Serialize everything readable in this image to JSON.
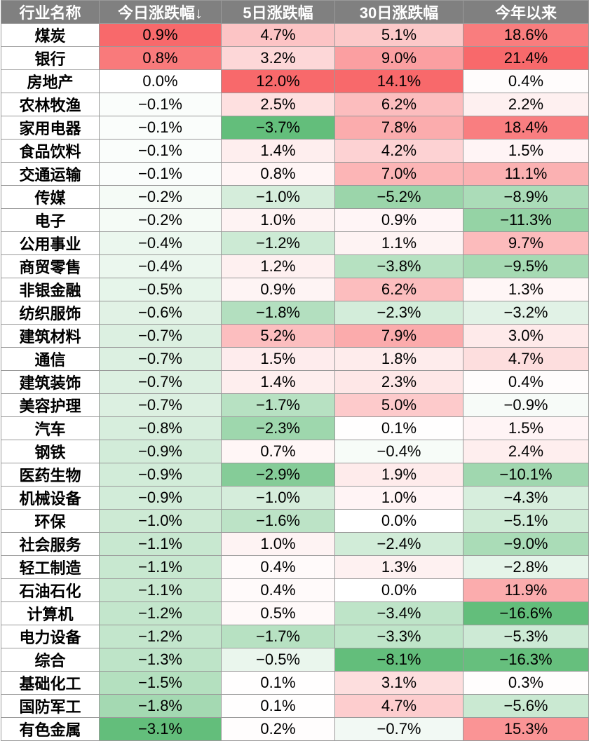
{
  "table": {
    "headers": [
      "行业名称",
      "今日涨跌幅↓",
      "5日涨跌幅",
      "30日涨跌幅",
      "今年以来"
    ],
    "rows": [
      {
        "name": "煤炭",
        "today": "0.9%",
        "d5": "4.7%",
        "d30": "5.1%",
        "ytd": "18.6%"
      },
      {
        "name": "银行",
        "today": "0.8%",
        "d5": "3.2%",
        "d30": "9.0%",
        "ytd": "21.4%"
      },
      {
        "name": "房地产",
        "today": "0.0%",
        "d5": "12.0%",
        "d30": "14.1%",
        "ytd": "0.4%"
      },
      {
        "name": "农林牧渔",
        "today": "−0.1%",
        "d5": "2.5%",
        "d30": "6.2%",
        "ytd": "2.2%"
      },
      {
        "name": "家用电器",
        "today": "−0.1%",
        "d5": "−3.7%",
        "d30": "7.8%",
        "ytd": "18.4%"
      },
      {
        "name": "食品饮料",
        "today": "−0.1%",
        "d5": "1.4%",
        "d30": "4.2%",
        "ytd": "1.5%"
      },
      {
        "name": "交通运输",
        "today": "−0.1%",
        "d5": "0.8%",
        "d30": "7.0%",
        "ytd": "11.1%"
      },
      {
        "name": "传媒",
        "today": "−0.2%",
        "d5": "−1.0%",
        "d30": "−5.2%",
        "ytd": "−8.9%"
      },
      {
        "name": "电子",
        "today": "−0.2%",
        "d5": "1.0%",
        "d30": "0.9%",
        "ytd": "−11.3%"
      },
      {
        "name": "公用事业",
        "today": "−0.4%",
        "d5": "−1.2%",
        "d30": "1.1%",
        "ytd": "9.7%"
      },
      {
        "name": "商贸零售",
        "today": "−0.4%",
        "d5": "1.2%",
        "d30": "−3.8%",
        "ytd": "−9.5%"
      },
      {
        "name": "非银金融",
        "today": "−0.5%",
        "d5": "0.9%",
        "d30": "6.2%",
        "ytd": "1.3%"
      },
      {
        "name": "纺织服饰",
        "today": "−0.6%",
        "d5": "−1.8%",
        "d30": "−2.3%",
        "ytd": "−3.2%"
      },
      {
        "name": "建筑材料",
        "today": "−0.7%",
        "d5": "5.2%",
        "d30": "7.9%",
        "ytd": "3.0%"
      },
      {
        "name": "通信",
        "today": "−0.7%",
        "d5": "1.5%",
        "d30": "1.8%",
        "ytd": "4.7%"
      },
      {
        "name": "建筑装饰",
        "today": "−0.7%",
        "d5": "1.4%",
        "d30": "2.3%",
        "ytd": "0.4%"
      },
      {
        "name": "美容护理",
        "today": "−0.7%",
        "d5": "−1.7%",
        "d30": "5.0%",
        "ytd": "−0.9%"
      },
      {
        "name": "汽车",
        "today": "−0.8%",
        "d5": "−2.3%",
        "d30": "0.1%",
        "ytd": "1.5%"
      },
      {
        "name": "钢铁",
        "today": "−0.9%",
        "d5": "0.7%",
        "d30": "−0.4%",
        "ytd": "2.4%"
      },
      {
        "name": "医药生物",
        "today": "−0.9%",
        "d5": "−2.9%",
        "d30": "1.9%",
        "ytd": "−10.1%"
      },
      {
        "name": "机械设备",
        "today": "−0.9%",
        "d5": "−1.0%",
        "d30": "1.0%",
        "ytd": "−4.3%"
      },
      {
        "name": "环保",
        "today": "−1.0%",
        "d5": "−1.6%",
        "d30": "0.0%",
        "ytd": "−5.1%"
      },
      {
        "name": "社会服务",
        "today": "−1.1%",
        "d5": "1.0%",
        "d30": "−2.4%",
        "ytd": "−9.0%"
      },
      {
        "name": "轻工制造",
        "today": "−1.1%",
        "d5": "0.4%",
        "d30": "1.3%",
        "ytd": "−2.8%"
      },
      {
        "name": "石油石化",
        "today": "−1.1%",
        "d5": "0.4%",
        "d30": "0.0%",
        "ytd": "11.9%"
      },
      {
        "name": "计算机",
        "today": "−1.2%",
        "d5": "0.5%",
        "d30": "−3.4%",
        "ytd": "−16.6%"
      },
      {
        "name": "电力设备",
        "today": "−1.2%",
        "d5": "−1.7%",
        "d30": "−3.3%",
        "ytd": "−5.3%"
      },
      {
        "name": "综合",
        "today": "−1.3%",
        "d5": "−0.5%",
        "d30": "−8.1%",
        "ytd": "−16.3%"
      },
      {
        "name": "基础化工",
        "today": "−1.5%",
        "d5": "0.1%",
        "d30": "3.1%",
        "ytd": "0.3%"
      },
      {
        "name": "国防军工",
        "today": "−1.8%",
        "d5": "0.1%",
        "d30": "4.7%",
        "ytd": "−5.6%"
      },
      {
        "name": "有色金属",
        "today": "−3.1%",
        "d5": "0.2%",
        "d30": "−0.7%",
        "ytd": "15.3%"
      }
    ]
  },
  "colors": {
    "header_bg": "#808080",
    "header_text": "#ffffff",
    "positive": "#f8696b",
    "negative": "#63be7b",
    "neutral": "#ffffff"
  }
}
